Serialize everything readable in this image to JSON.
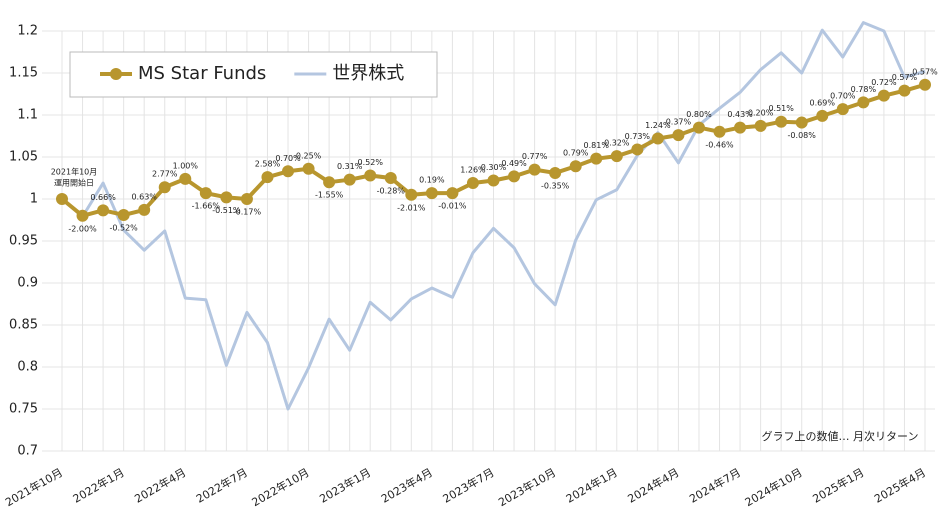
{
  "chart_data": {
    "type": "line",
    "categories": [
      "2021年10月",
      null,
      null,
      "2022年1月",
      null,
      null,
      "2022年4月",
      null,
      null,
      "2022年7月",
      null,
      null,
      "2022年10月",
      null,
      null,
      "2023年1月",
      null,
      null,
      "2023年4月",
      null,
      null,
      "2023年7月",
      null,
      null,
      "2023年10月",
      null,
      null,
      "2024年1月",
      null,
      null,
      "2024年4月",
      null,
      null,
      "2024年7月",
      null,
      null,
      "2024年10月",
      null,
      null,
      "2025年1月",
      null,
      null,
      "2025年4月"
    ],
    "series": [
      {
        "name": "MS Star Funds",
        "color": "#b8962e",
        "markers": true,
        "values": [
          1.0,
          0.98,
          0.9865,
          0.981,
          0.987,
          1.014,
          1.024,
          1.007,
          1.002,
          1.0,
          1.026,
          1.033,
          1.036,
          1.02,
          1.023,
          1.028,
          1.025,
          1.005,
          1.007,
          1.007,
          1.019,
          1.022,
          1.027,
          1.035,
          1.031,
          1.039,
          1.048,
          1.051,
          1.059,
          1.072,
          1.076,
          1.085,
          1.08,
          1.085,
          1.087,
          1.092,
          1.091,
          1.099,
          1.107,
          1.115,
          1.123,
          1.129,
          1.136
        ],
        "point_labels": [
          null,
          "-2.00%",
          "0.66%",
          "-0.52%",
          "0.63%",
          "2.77%",
          "1.00%",
          "-1.66%",
          "-0.51%",
          "-0.17%",
          "2.58%",
          "0.70%",
          "0.25%",
          "-1.55%",
          "0.31%",
          "0.52%",
          "-0.28%",
          "-2.01%",
          "0.19%",
          "-0.01%",
          "1.26%",
          "0.30%",
          "0.49%",
          "0.77%",
          "-0.35%",
          "0.79%",
          "0.81%",
          "0.32%",
          "0.73%",
          "1.24%",
          "0.37%",
          "0.80%",
          "-0.46%",
          "0.43%",
          "0.20%",
          "0.51%",
          "-0.08%",
          "0.69%",
          "0.70%",
          "0.78%",
          "0.72%",
          "0.57%",
          "0.57%"
        ]
      },
      {
        "name": "世界株式",
        "color": "#b4c6e0",
        "markers": false,
        "values": [
          1.0,
          0.979,
          1.019,
          0.963,
          0.939,
          0.962,
          0.882,
          0.88,
          0.802,
          0.865,
          0.829,
          0.75,
          0.799,
          0.857,
          0.82,
          0.877,
          0.856,
          0.881,
          0.894,
          0.883,
          0.936,
          0.965,
          0.942,
          0.899,
          0.874,
          0.951,
          0.999,
          1.011,
          1.052,
          1.079,
          1.043,
          1.088,
          1.108,
          1.127,
          1.154,
          1.174,
          1.15,
          1.201,
          1.169,
          1.21,
          1.2,
          1.145,
          1.152
        ]
      }
    ],
    "ylim": [
      0.7,
      1.2
    ],
    "yticks": [
      0.7,
      0.75,
      0.8,
      0.85,
      0.9,
      0.95,
      1,
      1.05,
      1.1,
      1.15,
      1.2
    ],
    "grid": true,
    "legend": "upper left",
    "start_annotation": [
      "2021年10月",
      "運用開始日"
    ],
    "note": "グラフ上の数値… 月次リターン"
  }
}
